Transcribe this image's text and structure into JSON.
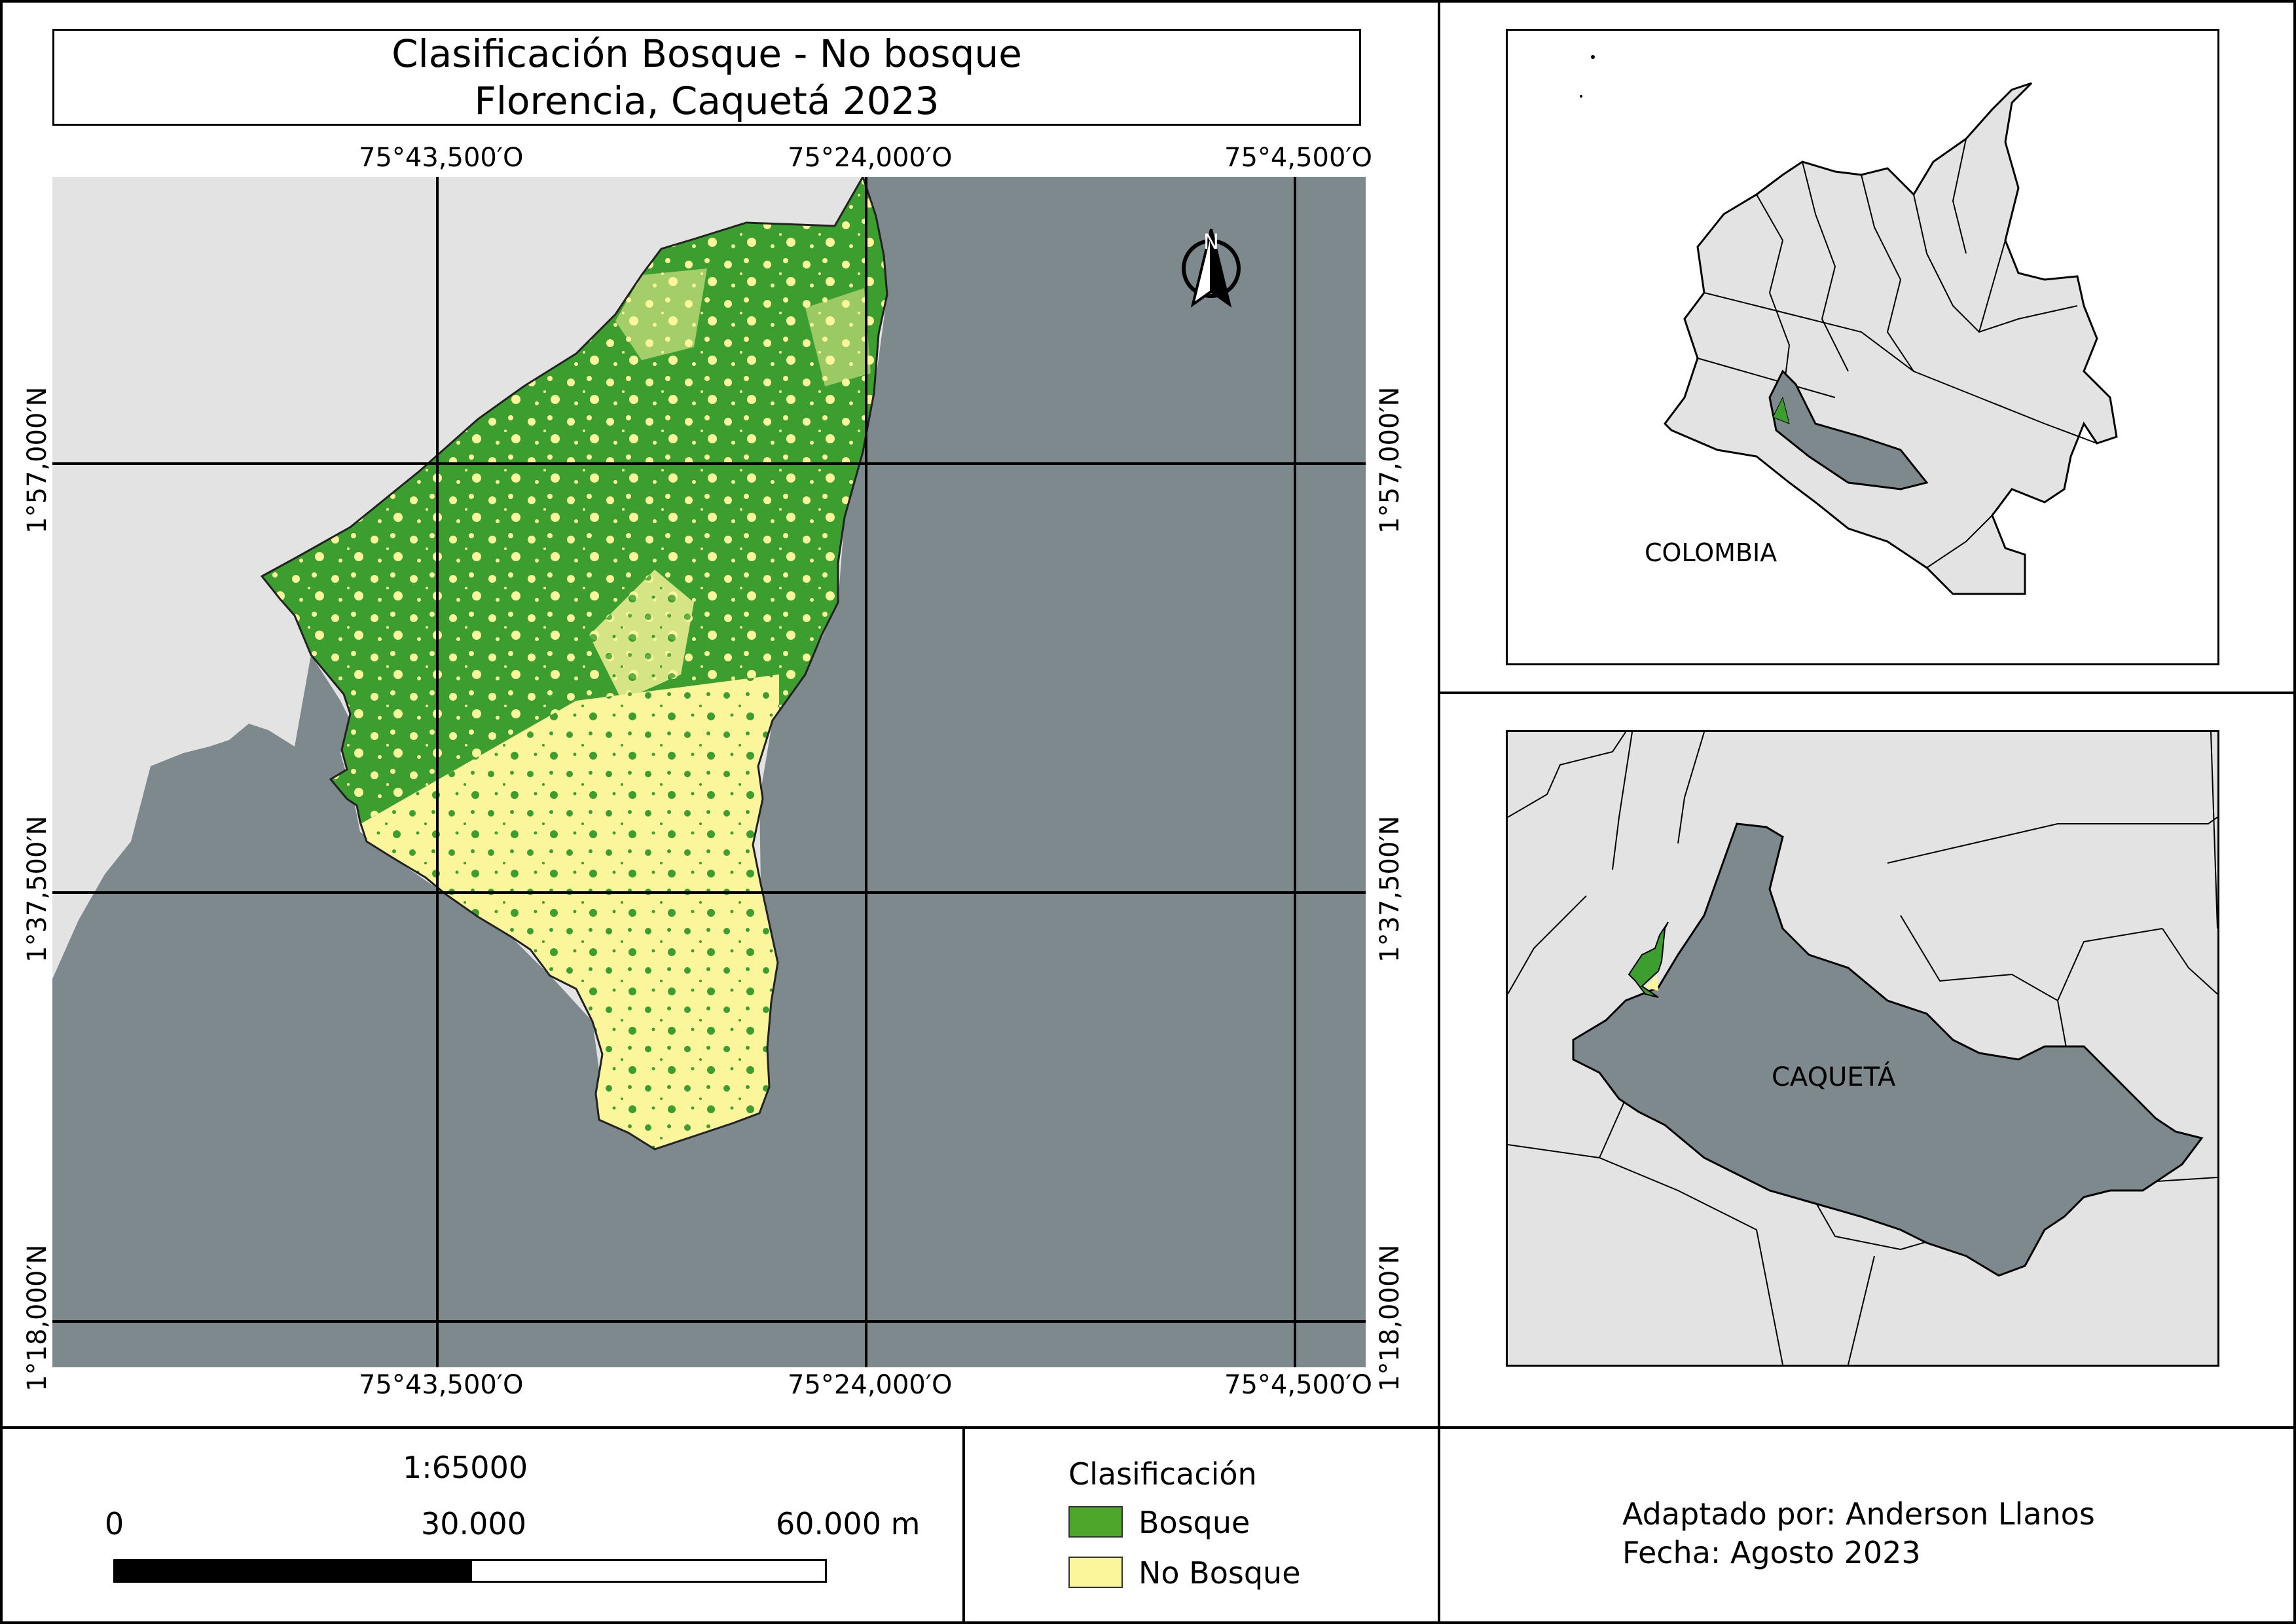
{
  "title": {
    "line1": "Clasificación Bosque - No bosque",
    "line2": "Florencia, Caquetá 2023"
  },
  "grid": {
    "longitudes_top": [
      "75°43,500′O",
      "75°24,000′O",
      "75°4,500′O"
    ],
    "longitudes_bottom": [
      "75°43,500′O",
      "75°24,000′O",
      "75°4,500′O"
    ],
    "latitudes_left": [
      "1°57,000′N",
      "1°37,500′N",
      "1°18,000′N"
    ],
    "latitudes_right": [
      "1°57,000′N",
      "1°37,500′N",
      "1°18,000′N"
    ]
  },
  "north_arrow": {
    "label": "N",
    "icon": "north-arrow-icon"
  },
  "inset_colombia": {
    "label": "COLOMBIA"
  },
  "inset_caqueta": {
    "label": "CAQUETÁ"
  },
  "scale": {
    "ratio": "1:65000",
    "ticks": [
      "0",
      "30.000",
      "60.000 m"
    ]
  },
  "legend": {
    "title": "Clasificación",
    "items": [
      {
        "label": "Bosque",
        "color": "#4ea72a"
      },
      {
        "label": "No Bosque",
        "color": "#fbf69b"
      }
    ]
  },
  "credits": {
    "author": "Adaptado por: Anderson Llanos",
    "date": "Fecha: Agosto 2023"
  },
  "colors": {
    "background_land": "#e3e3e3",
    "caqueta_fill": "#7d898c",
    "forest": "#3b9e2e",
    "non_forest": "#fbf69b",
    "border": "#000000"
  }
}
